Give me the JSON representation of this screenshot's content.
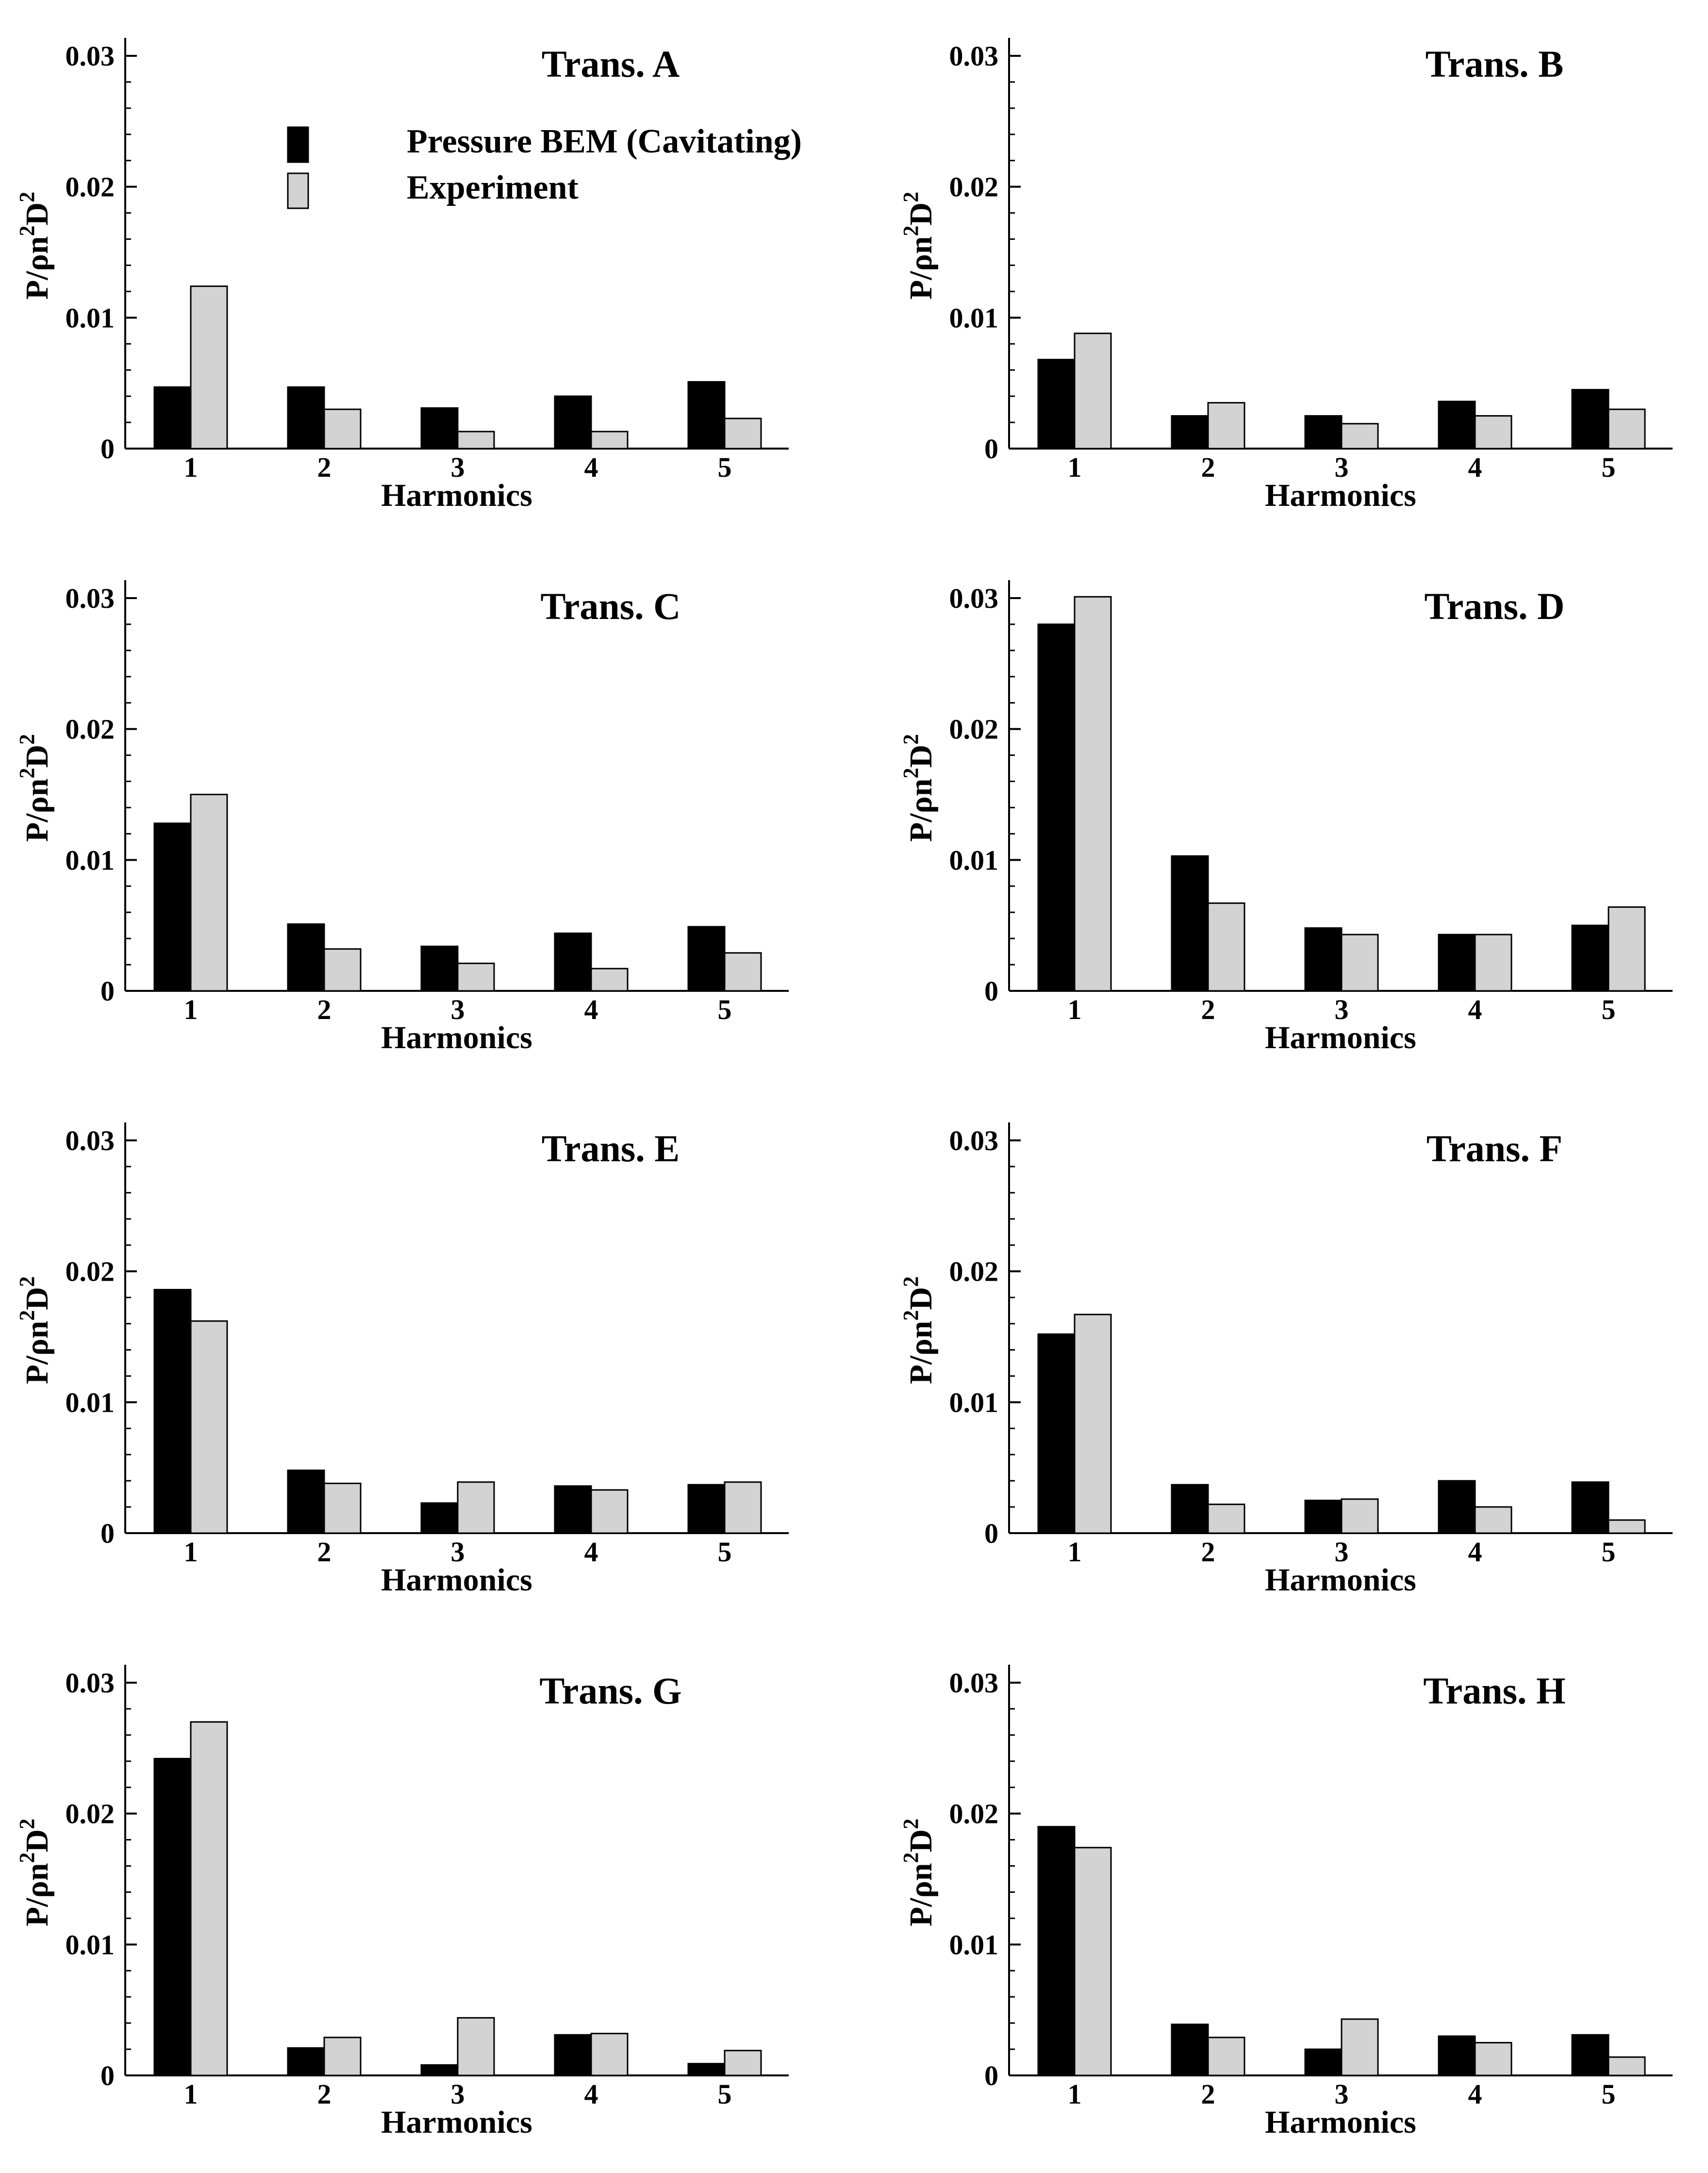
{
  "legend": {
    "items": [
      {
        "label": "Pressure BEM (Cavitating)",
        "color": "#000000"
      },
      {
        "label": "Experiment",
        "color": "#d3d3d3"
      }
    ]
  },
  "y_axis": {
    "label_main": "P/ρn",
    "label_sup1": "2",
    "label_mid": "D",
    "label_sup2": "2",
    "tick_labels": [
      "0",
      "0.01",
      "0.02",
      "0.03"
    ],
    "tick_values": [
      0,
      0.01,
      0.02,
      0.03
    ]
  },
  "x_axis": {
    "label": "Harmonics"
  },
  "chart_data": [
    {
      "type": "bar",
      "title": "Trans. A",
      "categories": [
        "1",
        "2",
        "3",
        "4",
        "5"
      ],
      "xlabel": "Harmonics",
      "ylabel": "P/ρn²D²",
      "ylim": [
        0,
        0.031
      ],
      "series": [
        {
          "name": "Pressure BEM (Cavitating)",
          "values": [
            0.0047,
            0.0047,
            0.0031,
            0.004,
            0.0051
          ]
        },
        {
          "name": "Experiment",
          "values": [
            0.0124,
            0.003,
            0.0013,
            0.0013,
            0.0023
          ]
        }
      ]
    },
    {
      "type": "bar",
      "title": "Trans. B",
      "categories": [
        "1",
        "2",
        "3",
        "4",
        "5"
      ],
      "xlabel": "Harmonics",
      "ylabel": "P/ρn²D²",
      "ylim": [
        0,
        0.031
      ],
      "series": [
        {
          "name": "Pressure BEM (Cavitating)",
          "values": [
            0.0068,
            0.0025,
            0.0025,
            0.0036,
            0.0045
          ]
        },
        {
          "name": "Experiment",
          "values": [
            0.0088,
            0.0035,
            0.0019,
            0.0025,
            0.003
          ]
        }
      ]
    },
    {
      "type": "bar",
      "title": "Trans. C",
      "categories": [
        "1",
        "2",
        "3",
        "4",
        "5"
      ],
      "xlabel": "Harmonics",
      "ylabel": "P/ρn²D²",
      "ylim": [
        0,
        0.031
      ],
      "series": [
        {
          "name": "Pressure BEM (Cavitating)",
          "values": [
            0.0128,
            0.0051,
            0.0034,
            0.0044,
            0.0049
          ]
        },
        {
          "name": "Experiment",
          "values": [
            0.015,
            0.0032,
            0.0021,
            0.0017,
            0.0029
          ]
        }
      ]
    },
    {
      "type": "bar",
      "title": "Trans. D",
      "categories": [
        "1",
        "2",
        "3",
        "4",
        "5"
      ],
      "xlabel": "Harmonics",
      "ylabel": "P/ρn²D²",
      "ylim": [
        0,
        0.031
      ],
      "series": [
        {
          "name": "Pressure BEM (Cavitating)",
          "values": [
            0.028,
            0.0103,
            0.0048,
            0.0043,
            0.005
          ]
        },
        {
          "name": "Experiment",
          "values": [
            0.0301,
            0.0067,
            0.0043,
            0.0043,
            0.0064
          ]
        }
      ]
    },
    {
      "type": "bar",
      "title": "Trans. E",
      "categories": [
        "1",
        "2",
        "3",
        "4",
        "5"
      ],
      "xlabel": "Harmonics",
      "ylabel": "P/ρn²D²",
      "ylim": [
        0,
        0.031
      ],
      "series": [
        {
          "name": "Pressure BEM (Cavitating)",
          "values": [
            0.0186,
            0.0048,
            0.0023,
            0.0036,
            0.0037
          ]
        },
        {
          "name": "Experiment",
          "values": [
            0.0162,
            0.0038,
            0.0039,
            0.0033,
            0.0039
          ]
        }
      ]
    },
    {
      "type": "bar",
      "title": "Trans. F",
      "categories": [
        "1",
        "2",
        "3",
        "4",
        "5"
      ],
      "xlabel": "Harmonics",
      "ylabel": "P/ρn²D²",
      "ylim": [
        0,
        0.031
      ],
      "series": [
        {
          "name": "Pressure BEM (Cavitating)",
          "values": [
            0.0152,
            0.0037,
            0.0025,
            0.004,
            0.0039
          ]
        },
        {
          "name": "Experiment",
          "values": [
            0.0167,
            0.0022,
            0.0026,
            0.002,
            0.001
          ]
        }
      ]
    },
    {
      "type": "bar",
      "title": "Trans. G",
      "categories": [
        "1",
        "2",
        "3",
        "4",
        "5"
      ],
      "xlabel": "Harmonics",
      "ylabel": "P/ρn²D²",
      "ylim": [
        0,
        0.031
      ],
      "series": [
        {
          "name": "Pressure BEM (Cavitating)",
          "values": [
            0.0242,
            0.0021,
            0.0008,
            0.0031,
            0.0009
          ]
        },
        {
          "name": "Experiment",
          "values": [
            0.027,
            0.0029,
            0.0044,
            0.0032,
            0.0019
          ]
        }
      ]
    },
    {
      "type": "bar",
      "title": "Trans. H",
      "categories": [
        "1",
        "2",
        "3",
        "4",
        "5"
      ],
      "xlabel": "Harmonics",
      "ylabel": "P/ρn²D²",
      "ylim": [
        0,
        0.031
      ],
      "series": [
        {
          "name": "Pressure BEM (Cavitating)",
          "values": [
            0.019,
            0.0039,
            0.002,
            0.003,
            0.0031
          ]
        },
        {
          "name": "Experiment",
          "values": [
            0.0174,
            0.0029,
            0.0043,
            0.0025,
            0.0014
          ]
        }
      ]
    }
  ]
}
